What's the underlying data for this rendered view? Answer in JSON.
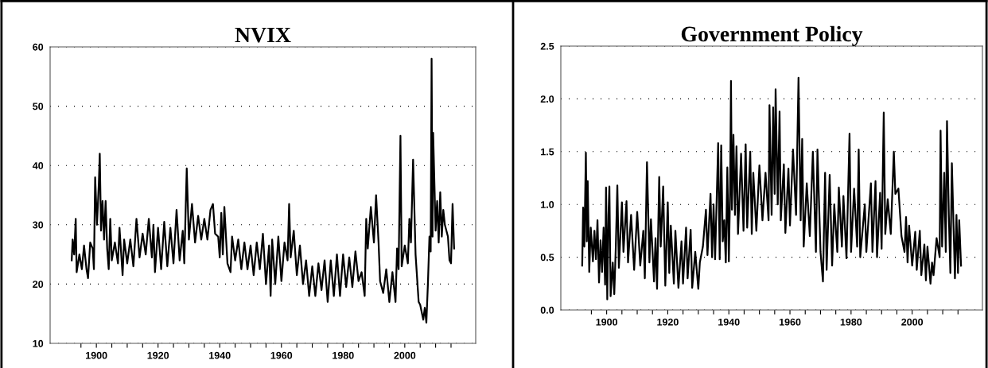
{
  "chart_data": [
    {
      "type": "line",
      "title": "NVIX",
      "grid": "y",
      "xlim": [
        1885,
        2023
      ],
      "ylim": [
        10,
        60
      ],
      "xticks": [
        {
          "value": 1895,
          "label": null
        },
        {
          "value": 1900,
          "label": "1900"
        },
        {
          "value": 1905,
          "label": null
        },
        {
          "value": 1910,
          "label": null
        },
        {
          "value": 1915,
          "label": null
        },
        {
          "value": 1920,
          "label": "1920"
        },
        {
          "value": 1925,
          "label": null
        },
        {
          "value": 1930,
          "label": null
        },
        {
          "value": 1935,
          "label": null
        },
        {
          "value": 1940,
          "label": "1940"
        },
        {
          "value": 1945,
          "label": null
        },
        {
          "value": 1950,
          "label": null
        },
        {
          "value": 1955,
          "label": null
        },
        {
          "value": 1960,
          "label": "1960"
        },
        {
          "value": 1965,
          "label": null
        },
        {
          "value": 1970,
          "label": null
        },
        {
          "value": 1975,
          "label": null
        },
        {
          "value": 1980,
          "label": "1980"
        },
        {
          "value": 1985,
          "label": null
        },
        {
          "value": 1990,
          "label": null
        },
        {
          "value": 1995,
          "label": null
        },
        {
          "value": 2000,
          "label": "2000"
        },
        {
          "value": 2005,
          "label": null
        },
        {
          "value": 2010,
          "label": null
        },
        {
          "value": 2015,
          "label": null
        }
      ],
      "yticks": [
        10,
        20,
        30,
        40,
        50,
        60
      ],
      "series": [
        {
          "color": "#000000",
          "x": [
            1892,
            1892.3,
            1892.8,
            1893.3,
            1893.6,
            1894.5,
            1895.3,
            1896,
            1896.8,
            1897.3,
            1898,
            1898.8,
            1899.2,
            1899.6,
            1900.2,
            1900.8,
            1901.1,
            1901.5,
            1902,
            1902.5,
            1903,
            1903.5,
            1904,
            1904.5,
            1905,
            1906,
            1907,
            1907.5,
            1908.5,
            1909,
            1910,
            1911,
            1912,
            1913,
            1914,
            1915,
            1916,
            1917,
            1918,
            1918.5,
            1919,
            1920,
            1921,
            1922,
            1923,
            1924,
            1925,
            1926,
            1927,
            1928,
            1928.5,
            1929.3,
            1930,
            1931,
            1932,
            1933,
            1934,
            1935,
            1936,
            1937,
            1937.8,
            1938.5,
            1939.5,
            1940,
            1940.5,
            1941,
            1941.5,
            1942.5,
            1943.5,
            1944,
            1945,
            1946,
            1947,
            1948,
            1949,
            1950,
            1951,
            1952,
            1953,
            1954,
            1955,
            1956,
            1956.5,
            1957,
            1958,
            1959,
            1960,
            1961,
            1962,
            1962.5,
            1963,
            1964,
            1965,
            1966,
            1967,
            1968,
            1969,
            1970,
            1971,
            1972,
            1973,
            1974,
            1975,
            1976,
            1977,
            1978,
            1979,
            1980,
            1981,
            1982,
            1983,
            1984,
            1985,
            1986,
            1987,
            1987.5,
            1988,
            1989,
            1990,
            1990.7,
            1991.5,
            1992,
            1993,
            1994,
            1995,
            1996,
            1997,
            1997.5,
            1998,
            1998.6,
            1999,
            2000,
            2001,
            2001.5,
            2002,
            2002.7,
            2003.5,
            2004.5,
            2005,
            2006,
            2006.5,
            2007,
            2007.5,
            2008,
            2008.4,
            2008.7,
            2009,
            2009.2,
            2010,
            2010.5,
            2011,
            2011.5,
            2012,
            2012.5,
            2013,
            2014,
            2014.5,
            2015,
            2015.5,
            2016
          ],
          "values": [
            24,
            27.5,
            25,
            31,
            22,
            25,
            22.5,
            26.5,
            22.5,
            21,
            27,
            26,
            22.5,
            38,
            30,
            37,
            42,
            29,
            34,
            27.5,
            34,
            26,
            22.5,
            31,
            24,
            27,
            23.5,
            29.5,
            21.5,
            27.5,
            23.5,
            27.5,
            23,
            31,
            24.5,
            28.5,
            25,
            31,
            24.5,
            30,
            22,
            29.5,
            22.5,
            30.5,
            23,
            29.5,
            23.5,
            32.5,
            24,
            29,
            23.5,
            39.5,
            27.5,
            33.5,
            27,
            31.5,
            27.5,
            31,
            27.5,
            32.5,
            33.5,
            28.5,
            28,
            24.5,
            32,
            25,
            33,
            23.5,
            22,
            28,
            24,
            27.5,
            22.5,
            27,
            22.5,
            26.5,
            21.5,
            27,
            22.5,
            28.5,
            20,
            26.5,
            18,
            27.5,
            20,
            28,
            20.5,
            27,
            24,
            33.5,
            24.5,
            29,
            21.5,
            26.5,
            20,
            24,
            18,
            23,
            18,
            23.5,
            19,
            24,
            17,
            24,
            18,
            25,
            18,
            25,
            19.5,
            24.5,
            19.5,
            25.5,
            20.5,
            22,
            18,
            31,
            26,
            33,
            27,
            35,
            27,
            20.5,
            18.5,
            22.5,
            17,
            22,
            17,
            26,
            22.5,
            45,
            23,
            26.5,
            23.5,
            31,
            27,
            41,
            25,
            17,
            16.5,
            14,
            16,
            13.5,
            20,
            28,
            25.5,
            58,
            28,
            45.5,
            29,
            34,
            27,
            35.5,
            28,
            32.5,
            30,
            28,
            24,
            23.5,
            33.5,
            26
          ]
        }
      ]
    },
    {
      "type": "line",
      "title": "Government Policy",
      "grid": "y",
      "xlim": [
        1885,
        2023
      ],
      "ylim": [
        0,
        2.5
      ],
      "xticks": [
        {
          "value": 1895,
          "label": null
        },
        {
          "value": 1900,
          "label": "1900"
        },
        {
          "value": 1905,
          "label": null
        },
        {
          "value": 1910,
          "label": null
        },
        {
          "value": 1915,
          "label": null
        },
        {
          "value": 1920,
          "label": "1920"
        },
        {
          "value": 1925,
          "label": null
        },
        {
          "value": 1930,
          "label": null
        },
        {
          "value": 1935,
          "label": null
        },
        {
          "value": 1940,
          "label": "1940"
        },
        {
          "value": 1945,
          "label": null
        },
        {
          "value": 1950,
          "label": null
        },
        {
          "value": 1955,
          "label": null
        },
        {
          "value": 1960,
          "label": "1960"
        },
        {
          "value": 1965,
          "label": null
        },
        {
          "value": 1970,
          "label": null
        },
        {
          "value": 1975,
          "label": null
        },
        {
          "value": 1980,
          "label": "1980"
        },
        {
          "value": 1985,
          "label": null
        },
        {
          "value": 1990,
          "label": null
        },
        {
          "value": 1995,
          "label": null
        },
        {
          "value": 2000,
          "label": "2000"
        },
        {
          "value": 2005,
          "label": null
        },
        {
          "value": 2010,
          "label": null
        },
        {
          "value": 2015,
          "label": null
        }
      ],
      "yticks": [
        {
          "value": 0,
          "label": "0.0"
        },
        {
          "value": 0.5,
          "label": "0.5"
        },
        {
          "value": 1,
          "label": "1.0"
        },
        {
          "value": 1.5,
          "label": "1.5"
        },
        {
          "value": 2,
          "label": "2.0"
        },
        {
          "value": 2.5,
          "label": "2.5"
        }
      ],
      "series": [
        {
          "color": "#000000",
          "x": [
            1892,
            1892.3,
            1892.7,
            1893.2,
            1893.5,
            1893.8,
            1894.3,
            1894.8,
            1895.5,
            1896,
            1896.5,
            1897,
            1897.5,
            1898,
            1898.5,
            1899,
            1899.5,
            1899.8,
            1900.2,
            1900.6,
            1900.9,
            1901.3,
            1902,
            1902.5,
            1903,
            1903.5,
            1904,
            1905,
            1905.5,
            1906.5,
            1907,
            1908,
            1909,
            1910,
            1911,
            1912,
            1912.5,
            1913.2,
            1914,
            1914.5,
            1915.5,
            1916,
            1916.5,
            1917.2,
            1917.7,
            1918.5,
            1919.2,
            1920,
            1920.5,
            1921,
            1922,
            1922.5,
            1923.5,
            1924.5,
            1925,
            1926,
            1926.5,
            1927.5,
            1928,
            1929,
            1930,
            1930.5,
            1931.5,
            1932.5,
            1933,
            1934,
            1934.5,
            1935,
            1935.5,
            1936.5,
            1937,
            1937.5,
            1938,
            1938.5,
            1939,
            1939.5,
            1940,
            1940.4,
            1940.7,
            1941,
            1941.5,
            1942,
            1942.5,
            1943,
            1944,
            1944.8,
            1945.5,
            1946,
            1947,
            1947.5,
            1948,
            1949,
            1950,
            1951,
            1952,
            1953,
            1953.3,
            1954,
            1954.5,
            1955,
            1955.3,
            1956,
            1956.6,
            1957,
            1958,
            1958.5,
            1959.5,
            1960,
            1961,
            1962,
            1962.8,
            1963.5,
            1964,
            1964.5,
            1965.5,
            1966.5,
            1967.5,
            1968.5,
            1969,
            1970,
            1970.8,
            1971.5,
            1972,
            1973,
            1973.8,
            1974.5,
            1975.5,
            1976,
            1977,
            1977.5,
            1978.5,
            1979.5,
            1980,
            1981,
            1982,
            1982.5,
            1983,
            1984.5,
            1985,
            1986.5,
            1987,
            1988,
            1988.5,
            1989.5,
            1990,
            1990.7,
            1991.2,
            1992,
            1993,
            1994,
            1994.5,
            1995.5,
            1996.5,
            1997.5,
            1998,
            1998.5,
            1999,
            2000,
            2001,
            2001.5,
            2002.5,
            2003,
            2004,
            2004.5,
            2005,
            2006,
            2006.5,
            2007,
            2008,
            2009,
            2009.3,
            2009.8,
            2010.5,
            2011,
            2011.4,
            2012,
            2012.5,
            2013,
            2014,
            2014.5,
            2015,
            2015.4,
            2016
          ],
          "values": [
            0.42,
            0.97,
            0.6,
            1.49,
            0.65,
            1.22,
            0.36,
            0.78,
            0.46,
            0.75,
            0.48,
            0.85,
            0.26,
            0.66,
            0.36,
            0.78,
            0.24,
            1.16,
            0.1,
            0.9,
            1.17,
            0.13,
            0.45,
            0.15,
            0.6,
            1.18,
            0.4,
            1.02,
            0.55,
            1.03,
            0.45,
            0.9,
            0.38,
            0.93,
            0.42,
            0.75,
            0.3,
            1.4,
            0.45,
            0.86,
            0.27,
            0.68,
            0.2,
            1.26,
            0.6,
            1.17,
            0.23,
            1.02,
            0.35,
            0.8,
            0.25,
            0.75,
            0.21,
            0.65,
            0.25,
            0.78,
            0.3,
            0.76,
            0.21,
            0.55,
            0.2,
            0.45,
            0.6,
            0.95,
            0.52,
            1.1,
            0.5,
            1.0,
            0.48,
            1.58,
            0.48,
            1.56,
            0.65,
            0.85,
            0.45,
            1.35,
            0.46,
            1.12,
            2.17,
            0.95,
            1.66,
            0.9,
            1.55,
            0.72,
            1.48,
            0.75,
            1.57,
            0.78,
            1.5,
            0.72,
            1.3,
            0.75,
            1.37,
            0.85,
            1.3,
            0.85,
            1.94,
            0.9,
            1.92,
            1.1,
            2.09,
            1.0,
            1.88,
            0.85,
            1.38,
            0.73,
            1.34,
            0.8,
            1.52,
            0.9,
            2.2,
            0.85,
            1.62,
            0.6,
            1.2,
            0.7,
            1.5,
            0.55,
            1.52,
            0.55,
            0.27,
            1.3,
            0.38,
            1.28,
            0.42,
            1.0,
            0.55,
            1.16,
            0.6,
            1.08,
            0.49,
            1.67,
            0.55,
            1.15,
            0.6,
            1.52,
            0.5,
            1.0,
            0.55,
            1.2,
            0.55,
            1.22,
            0.5,
            1.11,
            0.58,
            1.87,
            0.72,
            1.05,
            0.72,
            1.5,
            1.1,
            1.15,
            0.7,
            0.55,
            0.88,
            0.45,
            0.8,
            0.42,
            0.74,
            0.38,
            0.75,
            0.33,
            0.62,
            0.28,
            0.6,
            0.25,
            0.45,
            0.33,
            0.68,
            0.5,
            1.7,
            0.6,
            1.3,
            0.55,
            1.79,
            0.9,
            0.35,
            1.39,
            0.3,
            0.9,
            0.35,
            0.85,
            0.42
          ]
        }
      ]
    }
  ]
}
